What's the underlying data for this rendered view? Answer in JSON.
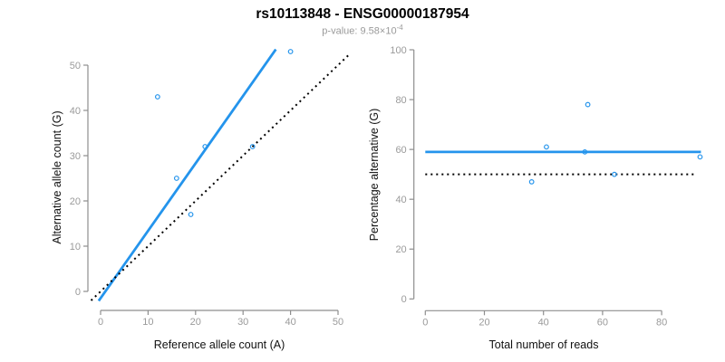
{
  "header": {
    "title": "rs10113848 - ENSG00000187954",
    "subtitle_prefix": "p-value: 9.58×10",
    "subtitle_exponent": "-4"
  },
  "colors": {
    "accent_blue": "#2494ec",
    "axis_line_gray": "#8e8e8e",
    "tick_label_gray": "#9a9a9a",
    "dotted_line_black": "#000000",
    "title_black": "#000000",
    "subtitle_gray": "#9a9a9a"
  },
  "chart_data": [
    {
      "type": "scatter",
      "title": "",
      "xlabel": "Reference allele count (A)",
      "ylabel": "Alternative allele count (G)",
      "xlim": [
        0,
        50
      ],
      "ylim": [
        0,
        53
      ],
      "xticks": [
        0,
        10,
        20,
        30,
        40,
        50
      ],
      "yticks": [
        0,
        10,
        20,
        30,
        40,
        50
      ],
      "grid": false,
      "legend": "none",
      "points": [
        [
          12,
          43
        ],
        [
          16,
          25
        ],
        [
          19,
          17
        ],
        [
          22,
          32
        ],
        [
          32,
          32
        ],
        [
          40,
          53
        ]
      ],
      "lines": [
        {
          "name": "fit-line",
          "style": "solid",
          "color_key": "accent_blue",
          "slope": 1.49,
          "intercept": -1.5,
          "x1": -0.4,
          "x2": 36.9
        },
        {
          "name": "identity-line",
          "style": "dotted",
          "color_key": "dotted_line_black",
          "slope": 1,
          "intercept": 0,
          "x1": -2.0,
          "x2": 52.5
        }
      ]
    },
    {
      "type": "scatter",
      "title": "",
      "xlabel": "Total number of reads",
      "ylabel": "Percentage alternative (G)",
      "xlim": [
        0,
        93
      ],
      "ylim": [
        0,
        100
      ],
      "xticks": [
        0,
        20,
        40,
        60,
        80
      ],
      "yticks": [
        0,
        20,
        40,
        60,
        80,
        100
      ],
      "grid": false,
      "legend": "none",
      "points": [
        [
          36,
          47
        ],
        [
          41,
          61
        ],
        [
          54,
          59
        ],
        [
          55,
          78
        ],
        [
          64,
          50
        ],
        [
          93,
          57
        ]
      ],
      "lines": [
        {
          "name": "fit-line",
          "style": "solid",
          "color_key": "accent_blue",
          "slope": 0,
          "intercept": 59,
          "x1": 0,
          "x2": 93.3
        },
        {
          "name": "reference-line",
          "style": "dotted",
          "color_key": "dotted_line_black",
          "slope": 0,
          "intercept": 50,
          "x1": 0,
          "x2": 91.2
        }
      ]
    }
  ]
}
